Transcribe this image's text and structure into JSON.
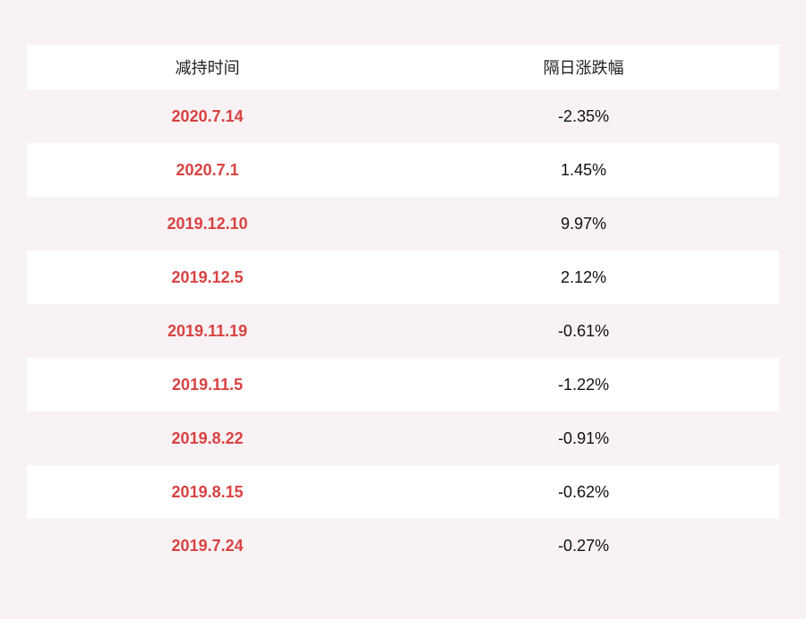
{
  "page": {
    "background_color": "#f8f2f4"
  },
  "colors": {
    "date_text": "#d94242",
    "change_text": "#111111",
    "header_text": "#222222",
    "stripe_row_bg": "#f8f2f4",
    "white_row_bg": "#ffffff",
    "header_bg": "#ffffff"
  },
  "chart_data": {
    "type": "table",
    "columns": [
      "减持时间",
      "隔日涨跌幅"
    ],
    "rows": [
      {
        "date": "2020.7.14",
        "change": "-2.35%"
      },
      {
        "date": "2020.7.1",
        "change": "1.45%"
      },
      {
        "date": "2019.12.10",
        "change": "9.97%"
      },
      {
        "date": "2019.12.5",
        "change": "2.12%"
      },
      {
        "date": "2019.11.19",
        "change": "-0.61%"
      },
      {
        "date": "2019.11.5",
        "change": "-1.22%"
      },
      {
        "date": "2019.8.22",
        "change": "-0.91%"
      },
      {
        "date": "2019.8.15",
        "change": "-0.62%"
      },
      {
        "date": "2019.7.24",
        "change": "-0.27%"
      }
    ]
  }
}
